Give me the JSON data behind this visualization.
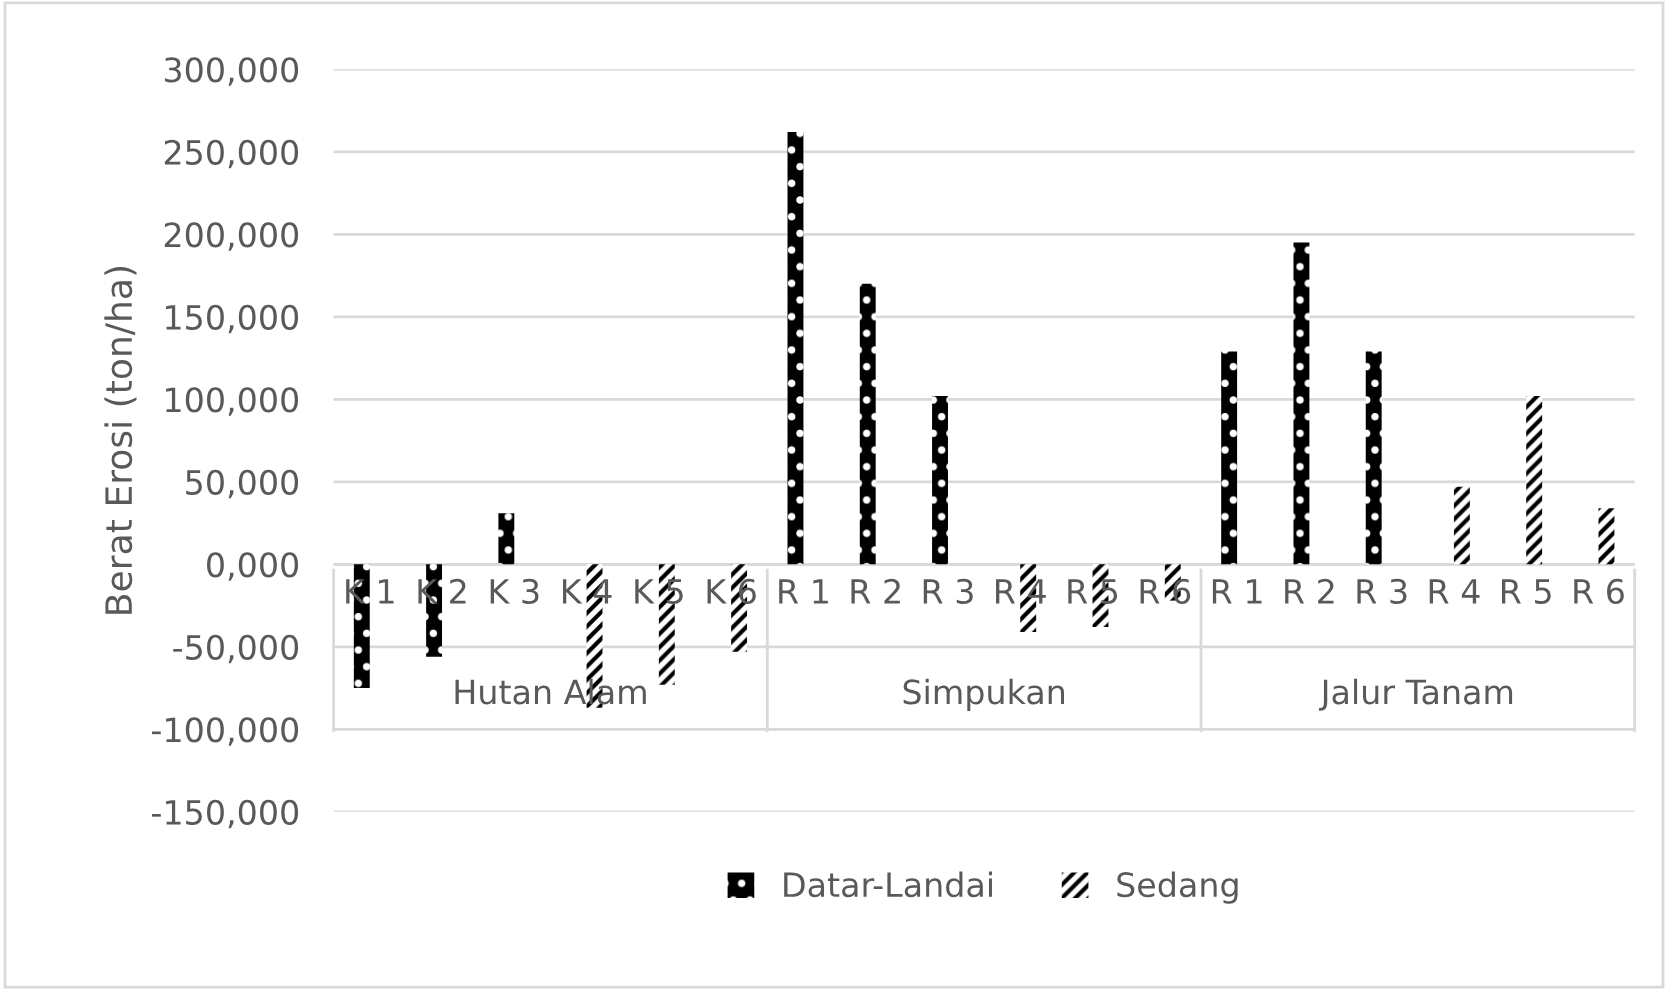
{
  "chart_data": {
    "type": "bar",
    "ylabel": "Berat Erosi (ton/ha)",
    "categories": [
      "K 1",
      "K 2",
      "K 3",
      "K 4",
      "K 5",
      "K 6",
      "R 1",
      "R 2",
      "R 3",
      "R 4",
      "R 5",
      "R 6",
      "R 1",
      "R 2",
      "R 3",
      "R 4",
      "R 5",
      "R 6"
    ],
    "series": [
      {
        "name": "Datar-Landai",
        "color": "#000000",
        "values": [
          -75000,
          -56000,
          31000,
          null,
          null,
          null,
          262000,
          170000,
          102000,
          null,
          null,
          null,
          129000,
          195000,
          129000,
          null,
          null,
          null
        ]
      },
      {
        "name": "Sedang",
        "color": "#000000",
        "values": [
          null,
          null,
          null,
          -87000,
          -73000,
          -53000,
          null,
          null,
          null,
          -41000,
          -38000,
          -22000,
          null,
          null,
          null,
          47000,
          102000,
          34000
        ]
      }
    ],
    "annotations": [
      "Hutan Alam",
      "Simpukan",
      "Jalur Tanam"
    ],
    "ylim": [
      -150000,
      300000
    ],
    "yticks": [
      {
        "value": -150000,
        "label": "-150,000"
      },
      {
        "value": -100000,
        "label": "-100,000"
      },
      {
        "value": -50000,
        "label": "-50,000"
      },
      {
        "value": 0,
        "label": "0,000"
      },
      {
        "value": 50000,
        "label": "50,000"
      },
      {
        "value": 100000,
        "label": "100,000"
      },
      {
        "value": 150000,
        "label": "150,000"
      },
      {
        "value": 200000,
        "label": "200,000"
      },
      {
        "value": 250000,
        "label": "250,000"
      },
      {
        "value": 300000,
        "label": "300,000"
      }
    ],
    "grid": "y",
    "legend": "bottom"
  }
}
